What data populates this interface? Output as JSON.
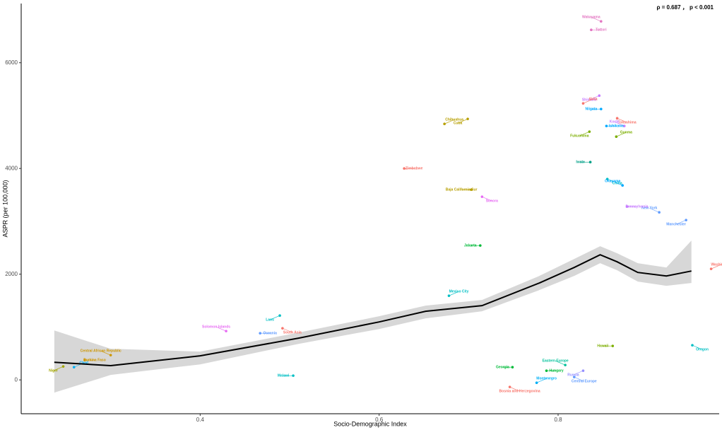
{
  "chart_data": {
    "type": "scatter",
    "annotation": "ρ = 0.687 ， p < 0.001",
    "xlabel": "Socio-Demographic Index",
    "ylabel": "ASPR (per 100,000)",
    "xlim": [
      0.2,
      0.98
    ],
    "ylim": [
      -640,
      7120
    ],
    "xticks": [
      0.4,
      0.6,
      0.8
    ],
    "yticks": [
      0,
      2000,
      4000,
      6000
    ],
    "points": {
      "labels": [
        "Wakayama",
        "Tottori",
        "Shimane",
        "Akita",
        "Niigata",
        "Tokushima",
        "Kochi",
        "Ishikawa",
        "Fukushima",
        "Gunma",
        "Iwate",
        "Chiba",
        "Okayama",
        "Zimbabwe",
        "Cuba",
        "Chihuahua",
        "Baja California Sur",
        "Sonora",
        "Central African Republic",
        "Burkina Faso",
        "Niger",
        "Chad",
        "Malawi",
        "South Asia",
        "Solomon Islands",
        "Oceania",
        "Laos",
        "Mexico City",
        "Jakarta",
        "Central Europe",
        "Eastern Europe",
        "Hungary",
        "Russia",
        "Montenegro",
        "Georgia",
        "Bosnia and Herzegovina",
        "New York",
        "Pennsylvania",
        "Manchester",
        "Washington",
        "Hawaii",
        "Oregon"
      ],
      "x": [
        0.848,
        0.837,
        0.846,
        0.828,
        0.848,
        0.866,
        0.874,
        0.854,
        0.835,
        0.865,
        0.836,
        0.855,
        0.872,
        0.628,
        0.699,
        0.673,
        0.703,
        0.715,
        0.3,
        0.271,
        0.247,
        0.259,
        0.504,
        0.492,
        0.429,
        0.467,
        0.489,
        0.678,
        0.713,
        0.818,
        0.808,
        0.787,
        0.828,
        0.776,
        0.749,
        0.746,
        0.913,
        0.877,
        0.943,
        0.971,
        0.861,
        0.95
      ],
      "y": [
        6783,
        6622,
        5378,
        5231,
        5124,
        4950,
        4803,
        4803,
        4696,
        4602,
        4120,
        3800,
        3679,
        4000,
        4937,
        4843,
        3599,
        3465,
        468,
        375,
        254,
        241,
        80,
        977,
        923,
        883,
        1217,
        1592,
        2542,
        54,
        281,
        174,
        174,
        -54,
        241,
        -134,
        3170,
        3278,
        3024,
        2100,
        642,
        656
      ],
      "colors": [
        "#e377c2",
        "#e377c2",
        "#c77cff",
        "#f8766d",
        "#00a9ff",
        "#f8766d",
        "#c77cff",
        "#00a9ff",
        "#7cae00",
        "#7cae00",
        "#00a087",
        "#00bfc4",
        "#00a9ff",
        "#f8766d",
        "#b79f00",
        "#b79f00",
        "#b79f00",
        "#e76bf3",
        "#cd9600",
        "#cd9600",
        "#a3a500",
        "#00b0f6",
        "#00bfc4",
        "#f8766d",
        "#e76bf3",
        "#619cff",
        "#00bfc4",
        "#00bfc4",
        "#00ba38",
        "#619cff",
        "#00c19a",
        "#00ba38",
        "#9590ff",
        "#00b0f6",
        "#00ba38",
        "#f8766d",
        "#619cff",
        "#c77cff",
        "#619cff",
        "#f8766d",
        "#7cae00",
        "#00bfc4"
      ]
    },
    "fit": {
      "x": [
        0.237,
        0.3,
        0.4,
        0.51,
        0.6,
        0.652,
        0.715,
        0.779,
        0.818,
        0.847,
        0.866,
        0.889,
        0.921,
        0.949
      ],
      "values": [
        334,
        270,
        455,
        790,
        1097,
        1298,
        1405,
        1833,
        2127,
        2368,
        2234,
        2033,
        1966,
        2060
      ],
      "lower": [
        -241,
        94,
        294,
        682,
        963,
        1164,
        1298,
        1699,
        1967,
        2208,
        2074,
        1860,
        1780,
        1833
      ],
      "upper": [
        936,
        589,
        535,
        896,
        1204,
        1405,
        1512,
        1967,
        2288,
        2529,
        2395,
        2208,
        2127,
        2636
      ]
    }
  }
}
